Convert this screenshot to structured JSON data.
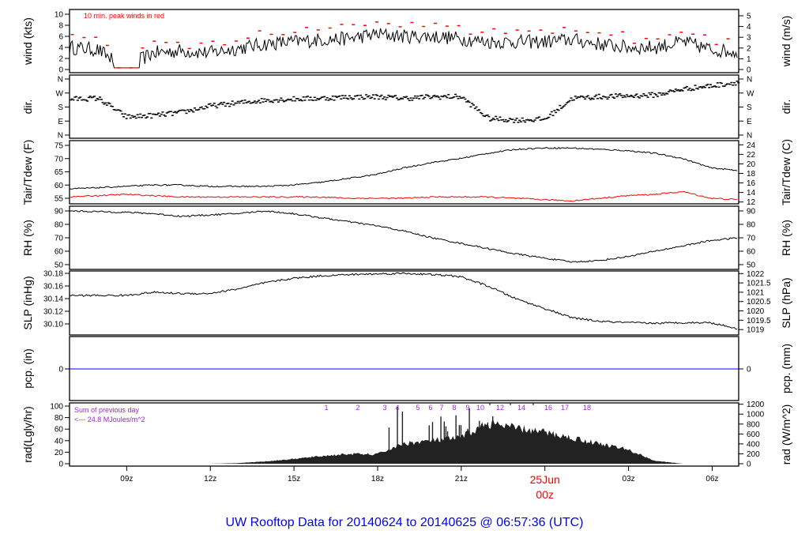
{
  "title": "UW Rooftop Data for 20140624  to  20140625 @ 06:57:36  (UTC)",
  "colors": {
    "title": "#0000ff",
    "peak": "#ff0000",
    "dew": "#ff0000",
    "pcp": "#0000ff",
    "hours": "#a020f0",
    "date": "#ff0000",
    "line": "#000000",
    "rad_fill": "#222222"
  },
  "chart_data": {
    "type": "line",
    "time_axis": {
      "hours_since_start_note": "series sampled hourly from 06:57Z 24 Jun to 06:57Z 25 Jun",
      "tick_labels": [
        "09z",
        "12z",
        "15z",
        "18z",
        "21z",
        "00z",
        "03z",
        "06z"
      ],
      "tick_hours": [
        2.05,
        5.05,
        8.05,
        11.05,
        14.05,
        17.05,
        20.05,
        23.05
      ],
      "date_label": "25Jun",
      "date_tick_label": "00z"
    },
    "panels": [
      {
        "id": "wind",
        "left_label": "wind (kts)",
        "right_label": "wind (m/s)",
        "left_ticks": [
          "0",
          "2",
          "4",
          "6",
          "8",
          "10"
        ],
        "right_ticks": [
          "0",
          "1",
          "2",
          "3",
          "4",
          "5"
        ],
        "annotation": "10 min. peak winds in red",
        "ylim": [
          0,
          10
        ],
        "values": [
          4,
          3.6,
          0.3,
          3,
          3.4,
          3,
          3.8,
          4.6,
          5,
          5.4,
          5.6,
          6.4,
          6,
          6,
          5.6,
          5,
          5,
          5,
          5.4,
          4.6,
          4,
          4,
          5,
          3.6,
          3.2
        ],
        "calm_period_hours": [
          1.6,
          2.5
        ]
      },
      {
        "id": "dir",
        "left_label": "dir.",
        "right_label": "dir.",
        "ticks": [
          "N",
          "W",
          "S",
          "E",
          "N"
        ],
        "ylim": [
          0,
          360
        ],
        "values": [
          235,
          240,
          120,
          130,
          150,
          190,
          210,
          228,
          235,
          240,
          248,
          250,
          240,
          250,
          250,
          110,
          100,
          105,
          240,
          250,
          255,
          262,
          300,
          320,
          345
        ]
      },
      {
        "id": "temp",
        "left_label": "Tair/Tdew (F)",
        "right_label": "Tair/Tdew (C)",
        "left_ticks": [
          "55",
          "60",
          "65",
          "70",
          "75"
        ],
        "right_ticks": [
          "12",
          "14",
          "16",
          "18",
          "20",
          "22",
          "24"
        ],
        "ylim": [
          52.5,
          75.5
        ],
        "series": [
          {
            "name": "Tair",
            "values": [
              58.5,
              59,
              59.5,
              60,
              60,
              59.5,
              59.5,
              59.5,
              60,
              61,
              62.5,
              64,
              66.5,
              68.5,
              70,
              72,
              73.5,
              74,
              74,
              73.5,
              73,
              72,
              70,
              66.5,
              65.5
            ]
          },
          {
            "name": "Tdew",
            "values": [
              55.5,
              56,
              56.5,
              56,
              55.5,
              55.5,
              55.5,
              55.5,
              55.5,
              55.5,
              55,
              55,
              55,
              55.5,
              55.5,
              55.5,
              55,
              54.5,
              54,
              55,
              56,
              56.5,
              57.5,
              55,
              54.5
            ]
          }
        ]
      },
      {
        "id": "rh",
        "left_label": "RH (%)",
        "right_label": "RH (%)",
        "ticks": [
          "50",
          "60",
          "70",
          "80",
          "90"
        ],
        "ylim": [
          48,
          91
        ],
        "values": [
          90,
          89.5,
          89,
          88,
          86,
          87,
          88,
          90,
          88,
          85,
          82,
          79,
          75,
          70,
          66,
          62,
          58,
          55,
          52,
          53,
          56,
          60,
          64,
          68,
          70
        ]
      },
      {
        "id": "slp",
        "left_label": "SLP (inHg)",
        "right_label": "SLP (hPa)",
        "left_ticks": [
          "30.10",
          "30.12",
          "30.14",
          "30.16",
          "30.18"
        ],
        "right_ticks": [
          "1019",
          "1019.5",
          "1020",
          "1020.5",
          "1021",
          "1021.5",
          "1022"
        ],
        "ylim": [
          30.085,
          30.185
        ],
        "values": [
          30.145,
          30.145,
          30.145,
          30.15,
          30.148,
          30.148,
          30.155,
          30.165,
          30.172,
          30.176,
          30.178,
          30.179,
          30.18,
          30.178,
          30.175,
          30.16,
          30.14,
          30.125,
          30.11,
          30.104,
          30.102,
          30.101,
          30.102,
          30.102,
          30.092
        ]
      },
      {
        "id": "pcp",
        "left_label": "pcp. (in)",
        "right_label": "pcp. (mm)",
        "left_ticks": [
          "0"
        ],
        "right_ticks": [
          "0"
        ],
        "values_constant": 0
      },
      {
        "id": "rad",
        "left_label": "rad(Lgly/hr)",
        "right_label": "rad (W/m^2)",
        "left_ticks": [
          "0",
          "20",
          "40",
          "60",
          "80",
          "100"
        ],
        "right_ticks": [
          "0",
          "200",
          "400",
          "600",
          "800",
          "1000",
          "1200"
        ],
        "ylim": [
          0,
          100
        ],
        "values": [
          0,
          0,
          0,
          0,
          0,
          0,
          1,
          4,
          8,
          13,
          17,
          16,
          35,
          40,
          45,
          70,
          62,
          55,
          45,
          35,
          25,
          5,
          0,
          0,
          0
        ],
        "annotation_lines": [
          "Sum of previous day",
          "<--- 24.8 MJoules/m^2"
        ],
        "hour_labels": [
          "1",
          "2",
          "3",
          "4",
          "5",
          "6",
          "7",
          "8",
          "9",
          "10",
          "12",
          "14",
          "16",
          "17",
          "18"
        ]
      }
    ]
  }
}
